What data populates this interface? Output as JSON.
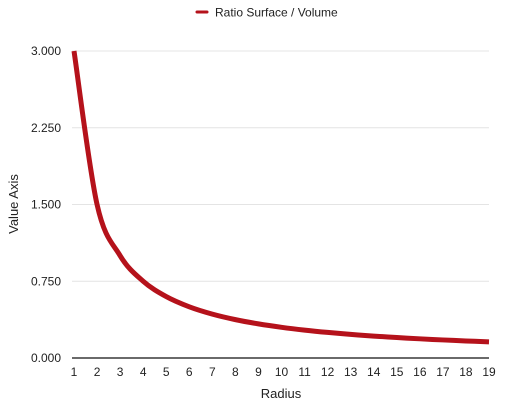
{
  "chart_data": {
    "type": "line",
    "title": "",
    "xlabel": "Radius",
    "ylabel": "Value Axis",
    "x": [
      1,
      2,
      3,
      4,
      5,
      6,
      7,
      8,
      9,
      10,
      11,
      12,
      13,
      14,
      15,
      16,
      17,
      18,
      19
    ],
    "series": [
      {
        "name": "Ratio Surface / Volume",
        "color": "#b5121b",
        "values": [
          3.0,
          1.5,
          1.0,
          0.75,
          0.6,
          0.5,
          0.4286,
          0.375,
          0.3333,
          0.3,
          0.2727,
          0.25,
          0.2308,
          0.2143,
          0.2,
          0.1875,
          0.1765,
          0.1667,
          0.1579
        ]
      }
    ],
    "xlim": [
      1,
      19
    ],
    "ylim": [
      0,
      3
    ],
    "yticks": [
      "0.000",
      "0.750",
      "1.500",
      "2.250",
      "3.000"
    ],
    "xticks": [
      "1",
      "2",
      "3",
      "4",
      "5",
      "6",
      "7",
      "8",
      "9",
      "10",
      "11",
      "12",
      "13",
      "14",
      "15",
      "16",
      "17",
      "18",
      "19"
    ],
    "grid": true,
    "legend": "top-center",
    "smooth": true
  }
}
